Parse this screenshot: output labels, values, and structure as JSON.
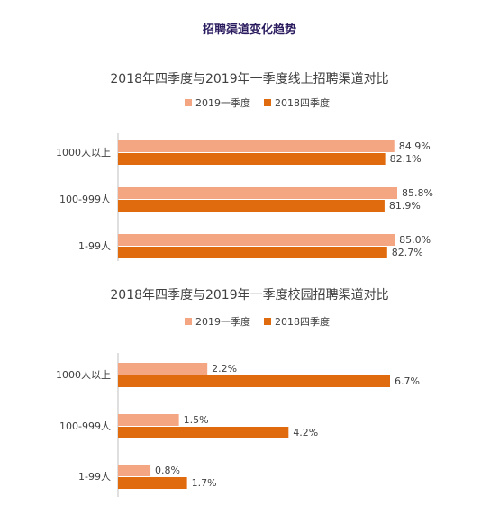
{
  "page_title": "招聘渠道变化趋势",
  "colors": {
    "q1_2019": "#f4a582",
    "q4_2018": "#e06a0e",
    "axis": "#bfbfbf"
  },
  "chart_data": [
    {
      "type": "bar",
      "orientation": "horizontal",
      "title": "2018年四季度与2019年一季度线上招聘渠道对比",
      "categories": [
        "1000人以上",
        "100-999人",
        "1-99人"
      ],
      "series": [
        {
          "name": "2019一季度",
          "values": [
            84.9,
            85.8,
            85.0
          ],
          "labels": [
            "84.9%",
            "85.8%",
            "85.0%"
          ]
        },
        {
          "name": "2018四季度",
          "values": [
            82.1,
            81.9,
            82.7
          ],
          "labels": [
            "82.1%",
            "81.9%",
            "82.7%"
          ]
        }
      ],
      "legend": "top-center",
      "grid": false
    },
    {
      "type": "bar",
      "orientation": "horizontal",
      "title": "2018年四季度与2019年一季度校园招聘渠道对比",
      "categories": [
        "1000人以上",
        "100-999人",
        "1-99人"
      ],
      "series": [
        {
          "name": "2019一季度",
          "values": [
            2.2,
            1.5,
            0.8
          ],
          "labels": [
            "2.2%",
            "1.5%",
            "0.8%"
          ]
        },
        {
          "name": "2018四季度",
          "values": [
            6.7,
            4.2,
            1.7
          ],
          "labels": [
            "6.7%",
            "4.2%",
            "1.7%"
          ]
        }
      ],
      "legend": "top-center",
      "grid": false
    }
  ]
}
